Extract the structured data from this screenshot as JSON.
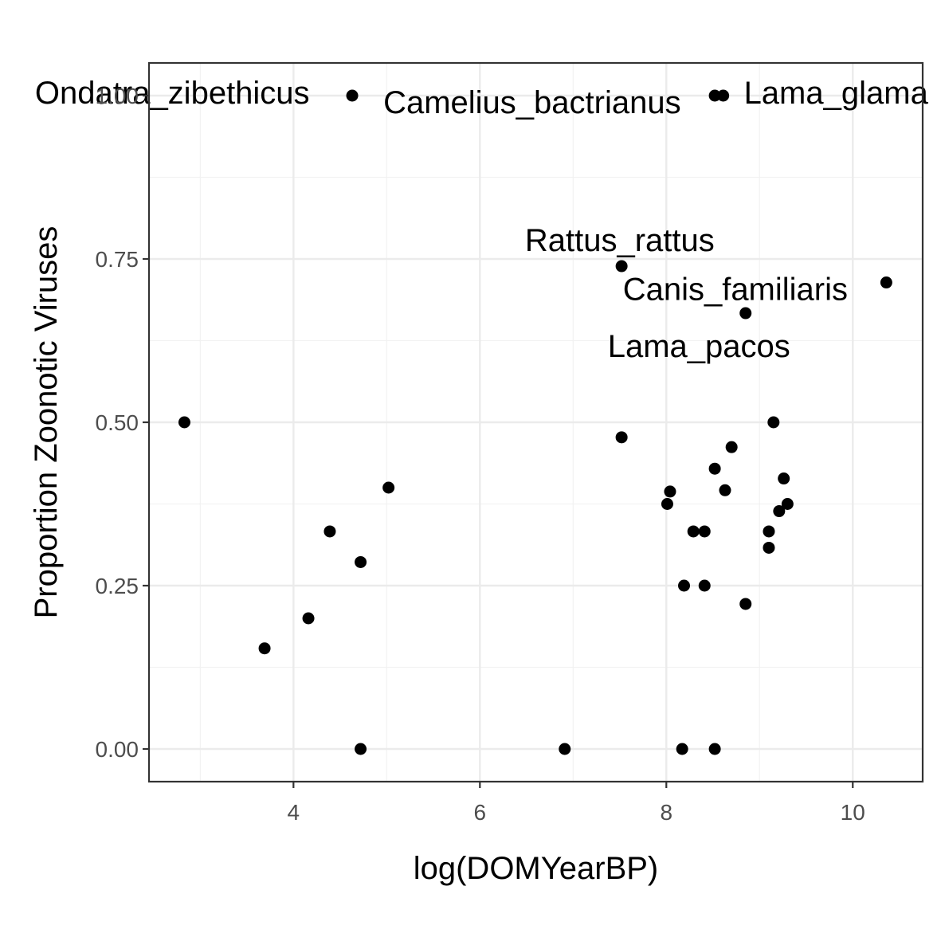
{
  "chart_data": {
    "type": "scatter",
    "title": "",
    "xlabel": "log(DOMYearBP)",
    "ylabel": "Proportion Zoonotic Viruses",
    "xlim": [
      2.45,
      10.75
    ],
    "ylim": [
      -0.05,
      1.05
    ],
    "x_ticks": [
      4,
      6,
      8,
      10
    ],
    "x_tick_labels": [
      "4",
      "6",
      "8",
      "10"
    ],
    "y_ticks": [
      0,
      0.25,
      0.5,
      0.75,
      1.0
    ],
    "y_tick_labels": [
      "0.00",
      "0.25",
      "0.50",
      "0.75",
      "1.00"
    ],
    "grid": true,
    "point_color": "#000000",
    "points": [
      {
        "x": 2.83,
        "y": 0.5
      },
      {
        "x": 3.69,
        "y": 0.154
      },
      {
        "x": 4.16,
        "y": 0.2
      },
      {
        "x": 4.39,
        "y": 0.333
      },
      {
        "x": 4.63,
        "y": 1.0
      },
      {
        "x": 4.72,
        "y": 0.286
      },
      {
        "x": 4.72,
        "y": 0.0
      },
      {
        "x": 5.02,
        "y": 0.4
      },
      {
        "x": 6.91,
        "y": 0.0
      },
      {
        "x": 7.52,
        "y": 0.739
      },
      {
        "x": 7.52,
        "y": 0.477
      },
      {
        "x": 8.01,
        "y": 0.375
      },
      {
        "x": 8.04,
        "y": 0.394
      },
      {
        "x": 8.17,
        "y": 0.0
      },
      {
        "x": 8.19,
        "y": 0.25
      },
      {
        "x": 8.29,
        "y": 0.333
      },
      {
        "x": 8.41,
        "y": 0.333
      },
      {
        "x": 8.41,
        "y": 0.25
      },
      {
        "x": 8.52,
        "y": 0.429
      },
      {
        "x": 8.52,
        "y": 0.0
      },
      {
        "x": 8.52,
        "y": 1.0
      },
      {
        "x": 8.61,
        "y": 1.0
      },
      {
        "x": 8.63,
        "y": 0.396
      },
      {
        "x": 8.7,
        "y": 0.462
      },
      {
        "x": 8.85,
        "y": 0.667
      },
      {
        "x": 8.85,
        "y": 0.222
      },
      {
        "x": 9.1,
        "y": 0.333
      },
      {
        "x": 9.1,
        "y": 0.308
      },
      {
        "x": 9.15,
        "y": 0.5
      },
      {
        "x": 9.21,
        "y": 0.364
      },
      {
        "x": 9.26,
        "y": 0.414
      },
      {
        "x": 9.3,
        "y": 0.375
      },
      {
        "x": 10.36,
        "y": 0.714
      }
    ],
    "annotations": [
      {
        "text": "Ondatra_zibethicus",
        "x": 4.63,
        "y": 1.0,
        "dx": -1.93,
        "dy": 0.005
      },
      {
        "text": "Camelius_bactrianus",
        "x": 8.52,
        "y": 1.0,
        "dx": -1.96,
        "dy": -0.01
      },
      {
        "text": "Lama_glama",
        "x": 8.61,
        "y": 1.0,
        "dx": 1.21,
        "dy": 0.005
      },
      {
        "text": "Rattus_rattus",
        "x": 7.52,
        "y": 0.739,
        "dx": -0.02,
        "dy": 0.04
      },
      {
        "text": "Canis_familiaris",
        "x": 10.36,
        "y": 0.714,
        "dx": -1.62,
        "dy": -0.01
      },
      {
        "text": "Lama_pacos",
        "x": 8.85,
        "y": 0.667,
        "dx": -0.5,
        "dy": -0.05
      }
    ]
  }
}
